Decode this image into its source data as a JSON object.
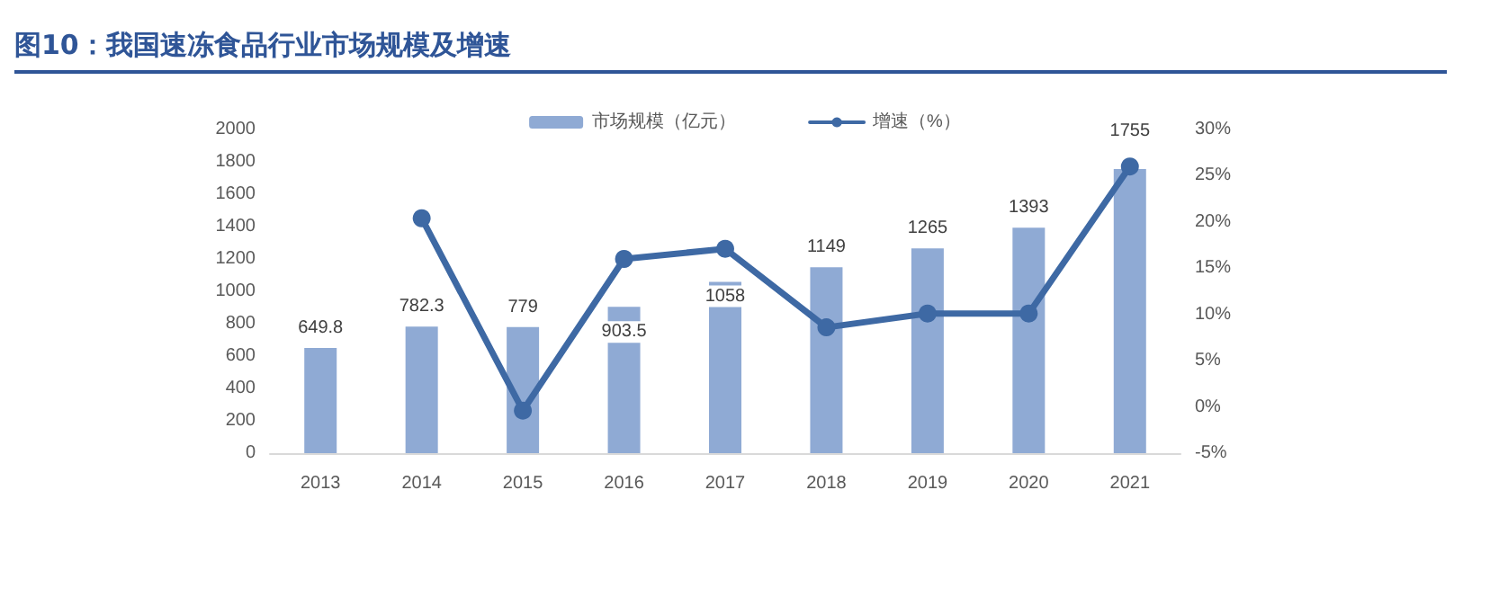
{
  "chart_data": {
    "type": "bar",
    "title": "图10：我国速冻食品行业市场规模及增速",
    "categories": [
      "2013",
      "2014",
      "2015",
      "2016",
      "2017",
      "2018",
      "2019",
      "2020",
      "2021"
    ],
    "series": [
      {
        "name": "市场规模（亿元）",
        "color": "#8faad4",
        "values": [
          649.8,
          782.3,
          779,
          903.5,
          1058,
          1149,
          1265,
          1393,
          1755
        ],
        "value_labels": [
          "649.8",
          "782.3",
          "779",
          "903.5",
          "1058",
          "1149",
          "1265",
          "1393",
          "1755"
        ]
      },
      {
        "name": "增速（%）",
        "type": "line",
        "axis": "y2",
        "color": "#3e69a4",
        "values": [
          null,
          20.4,
          -0.4,
          16.0,
          17.1,
          8.6,
          10.1,
          10.1,
          26.0
        ]
      }
    ],
    "ylim": [
      0,
      2000
    ],
    "yticks": [
      0,
      200,
      400,
      600,
      800,
      1000,
      1200,
      1400,
      1600,
      1800,
      2000
    ],
    "y2lim": [
      -5,
      30
    ],
    "y2ticks": [
      {
        "value": -5,
        "label": "-5%"
      },
      {
        "value": 0,
        "label": "0%"
      },
      {
        "value": 5,
        "label": "5%"
      },
      {
        "value": 10,
        "label": "10%"
      },
      {
        "value": 15,
        "label": "15%"
      },
      {
        "value": 20,
        "label": "20%"
      },
      {
        "value": 25,
        "label": "25%"
      },
      {
        "value": 30,
        "label": "30%"
      }
    ],
    "legend": "top",
    "marker": "circle",
    "line_style": "solid",
    "grid": false
  }
}
